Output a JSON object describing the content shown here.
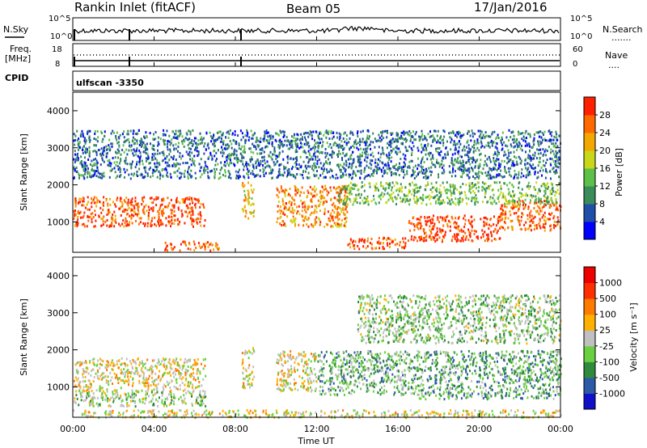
{
  "header": {
    "station": "Rankin Inlet (fitACF)",
    "beam": "Beam 05",
    "date": "17/Jan/2016"
  },
  "top_panels": {
    "nsky_label": "N.Sky",
    "nsearch_label": "N.Search",
    "nsearch_dots": ".......",
    "nsky_ticks": [
      "10^5",
      "10^0"
    ],
    "nsearch_ticks": [
      "10^5",
      "10^0"
    ],
    "freq_label_1": "Freq.",
    "freq_label_2": "[MHz]",
    "freq_ticks": [
      "18",
      "8"
    ],
    "nave_label": "Nave",
    "nave_dots": "....",
    "nave_ticks": [
      "60",
      "0"
    ],
    "cpid_label": "CPID",
    "cpid_value": "ulfscan -3350"
  },
  "power_panel": {
    "ylabel": "Slant Range [km]",
    "yticks": [
      "4000",
      "3000",
      "2000",
      "1000"
    ],
    "colorbar_label": "Power [dB]",
    "colorbar_ticks": [
      "28",
      "24",
      "20",
      "16",
      "12",
      "8",
      "4"
    ]
  },
  "velocity_panel": {
    "ylabel": "Slant Range [km]",
    "yticks": [
      "4000",
      "3000",
      "2000",
      "1000"
    ],
    "colorbar_label": "Velocity [m s⁻¹]",
    "colorbar_ticks": [
      "1000",
      "500",
      "100",
      "25",
      "-25",
      "-100",
      "-500",
      "-1000"
    ]
  },
  "xaxis": {
    "ticks": [
      "00:00",
      "04:00",
      "08:00",
      "12:00",
      "16:00",
      "20:00",
      "00:00"
    ],
    "label": "Time UT"
  },
  "colors": {
    "power_scale": [
      "#0000ff",
      "#1f4fa8",
      "#3a8c5a",
      "#5cc04a",
      "#c8d818",
      "#f2a800",
      "#ff6a00",
      "#ff2000"
    ],
    "velocity_scale": [
      "#1010c8",
      "#2d5aa6",
      "#2f8a3c",
      "#6bd040",
      "#c0c0c0",
      "#ffb000",
      "#ff7a00",
      "#ff3000",
      "#ee0000"
    ]
  },
  "chart_data": [
    {
      "type": "heatmap",
      "title": "Power [dB]",
      "x_range": [
        "00:00",
        "24:00"
      ],
      "ylim": [
        180,
        4500
      ],
      "ylabel": "Slant Range [km]",
      "xlabel": "Time UT",
      "colorbar_range": [
        0,
        32
      ],
      "bands": [
        {
          "t0": 0.0,
          "t1": 6.5,
          "r0": 900,
          "r1": 1700,
          "value": 28
        },
        {
          "t0": 4.5,
          "t1": 7.2,
          "r0": 250,
          "r1": 500,
          "value": 26
        },
        {
          "t0": 8.3,
          "t1": 8.9,
          "r0": 1100,
          "r1": 2100,
          "value": 20
        },
        {
          "t0": 10.0,
          "t1": 13.5,
          "r0": 900,
          "r1": 2000,
          "value": 24
        },
        {
          "t0": 13.5,
          "t1": 16.5,
          "r0": 300,
          "r1": 600,
          "value": 28
        },
        {
          "t0": 16.5,
          "t1": 21.0,
          "r0": 500,
          "r1": 1200,
          "value": 29
        },
        {
          "t0": 21.0,
          "t1": 24.0,
          "r0": 800,
          "r1": 1600,
          "value": 27
        },
        {
          "t0": 13.0,
          "t1": 24.0,
          "r0": 1500,
          "r1": 2100,
          "value": 14
        },
        {
          "t0": 0.0,
          "t1": 24.0,
          "r0": 2200,
          "r1": 3500,
          "value": 8
        }
      ]
    },
    {
      "type": "heatmap",
      "title": "Velocity [m s⁻¹]",
      "x_range": [
        "00:00",
        "24:00"
      ],
      "ylim": [
        180,
        4500
      ],
      "ylabel": "Slant Range [km]",
      "xlabel": "Time UT",
      "colorbar_range": [
        -1000,
        1000
      ],
      "bands": [
        {
          "t0": 0.0,
          "t1": 6.5,
          "r0": 900,
          "r1": 1800,
          "value": 80
        },
        {
          "t0": 0.0,
          "t1": 6.5,
          "r0": 500,
          "r1": 900,
          "value": -150
        },
        {
          "t0": 8.3,
          "t1": 8.9,
          "r0": 1000,
          "r1": 2100,
          "value": 60
        },
        {
          "t0": 10.0,
          "t1": 12.0,
          "r0": 900,
          "r1": 2000,
          "value": 90
        },
        {
          "t0": 12.0,
          "t1": 17.0,
          "r0": 800,
          "r1": 2000,
          "value": -300
        },
        {
          "t0": 17.0,
          "t1": 24.0,
          "r0": 700,
          "r1": 2000,
          "value": -350
        },
        {
          "t0": 14.0,
          "t1": 24.0,
          "r0": 2200,
          "r1": 3500,
          "value": -200
        },
        {
          "t0": 0.0,
          "t1": 24.0,
          "r0": 200,
          "r1": 400,
          "value": 50
        }
      ]
    }
  ]
}
